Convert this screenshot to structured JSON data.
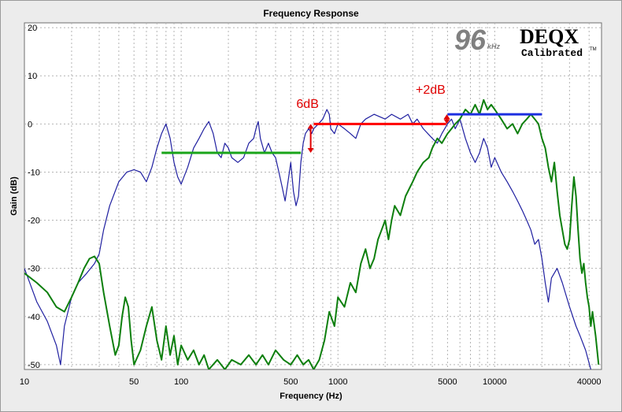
{
  "chart_data": {
    "type": "line",
    "title": "Frequency Response",
    "xlabel": "Frequency (Hz)",
    "ylabel": "Gain (dB)",
    "xscale": "log",
    "xlim": [
      10,
      48000
    ],
    "ylim": [
      -51,
      21
    ],
    "xticks": [
      10,
      50,
      100,
      500,
      1000,
      5000,
      10000,
      40000
    ],
    "yticks": [
      20,
      10,
      0,
      -10,
      -20,
      -30,
      -40,
      -50
    ],
    "grid": true,
    "legend": "none",
    "colors": {
      "midrange": "#1f1fa0",
      "tweeter": "#0d7f0d",
      "annotation_red": "#e00000",
      "level_green": "#1aa51a",
      "level_red": "#ff0000",
      "level_blue": "#1c2ee0",
      "grid": "#b4b4b4",
      "plot_bg": "#ffffff"
    },
    "series": [
      {
        "color": "#1f1fa0",
        "points": [
          [
            10,
            -30
          ],
          [
            12,
            -37
          ],
          [
            14,
            -41
          ],
          [
            16,
            -46
          ],
          [
            17,
            -50
          ],
          [
            18,
            -42
          ],
          [
            20,
            -36
          ],
          [
            22,
            -33
          ],
          [
            25,
            -31
          ],
          [
            28,
            -29
          ],
          [
            30,
            -27
          ],
          [
            32,
            -22
          ],
          [
            35,
            -17
          ],
          [
            40,
            -12
          ],
          [
            45,
            -10
          ],
          [
            50,
            -9.5
          ],
          [
            55,
            -10
          ],
          [
            60,
            -12
          ],
          [
            65,
            -9
          ],
          [
            70,
            -5
          ],
          [
            75,
            -2
          ],
          [
            80,
            0
          ],
          [
            85,
            -3
          ],
          [
            90,
            -8
          ],
          [
            95,
            -11
          ],
          [
            100,
            -12.5
          ],
          [
            110,
            -9
          ],
          [
            120,
            -5
          ],
          [
            130,
            -3
          ],
          [
            140,
            -1
          ],
          [
            150,
            0.5
          ],
          [
            160,
            -2
          ],
          [
            170,
            -6
          ],
          [
            180,
            -7
          ],
          [
            190,
            -4
          ],
          [
            200,
            -5
          ],
          [
            210,
            -7
          ],
          [
            230,
            -8
          ],
          [
            250,
            -7
          ],
          [
            270,
            -4
          ],
          [
            290,
            -3
          ],
          [
            300,
            -1
          ],
          [
            310,
            0.5
          ],
          [
            320,
            -3
          ],
          [
            340,
            -6
          ],
          [
            360,
            -4
          ],
          [
            380,
            -6
          ],
          [
            400,
            -7
          ],
          [
            420,
            -10
          ],
          [
            440,
            -13
          ],
          [
            460,
            -16
          ],
          [
            480,
            -12
          ],
          [
            500,
            -8
          ],
          [
            520,
            -14
          ],
          [
            540,
            -17
          ],
          [
            560,
            -15
          ],
          [
            580,
            -8
          ],
          [
            600,
            -4
          ],
          [
            620,
            -2
          ],
          [
            650,
            -1
          ],
          [
            680,
            -2
          ],
          [
            700,
            -1
          ],
          [
            750,
            0
          ],
          [
            800,
            1
          ],
          [
            850,
            3
          ],
          [
            880,
            2
          ],
          [
            900,
            -1
          ],
          [
            950,
            -2
          ],
          [
            1000,
            0
          ],
          [
            1100,
            -1
          ],
          [
            1200,
            -2
          ],
          [
            1300,
            -3
          ],
          [
            1400,
            0
          ],
          [
            1500,
            1
          ],
          [
            1700,
            2
          ],
          [
            2000,
            1
          ],
          [
            2200,
            2
          ],
          [
            2500,
            1
          ],
          [
            2800,
            2
          ],
          [
            3000,
            0
          ],
          [
            3200,
            1
          ],
          [
            3500,
            -1
          ],
          [
            4000,
            -3
          ],
          [
            4300,
            -4
          ],
          [
            4600,
            -2
          ],
          [
            5000,
            0
          ],
          [
            5300,
            1
          ],
          [
            5600,
            -1
          ],
          [
            6000,
            1
          ],
          [
            6500,
            -3
          ],
          [
            7000,
            -6
          ],
          [
            7500,
            -8
          ],
          [
            8000,
            -6
          ],
          [
            8500,
            -3
          ],
          [
            9000,
            -5
          ],
          [
            9500,
            -9
          ],
          [
            10000,
            -7
          ],
          [
            11000,
            -10
          ],
          [
            12000,
            -12
          ],
          [
            13000,
            -14
          ],
          [
            14000,
            -16
          ],
          [
            15000,
            -18
          ],
          [
            16000,
            -20
          ],
          [
            17000,
            -22
          ],
          [
            18000,
            -25
          ],
          [
            19000,
            -24
          ],
          [
            20000,
            -28
          ],
          [
            21000,
            -33
          ],
          [
            22000,
            -37
          ],
          [
            23000,
            -32
          ],
          [
            25000,
            -30
          ],
          [
            27000,
            -33
          ],
          [
            30000,
            -38
          ],
          [
            33000,
            -42
          ],
          [
            35000,
            -44
          ],
          [
            38000,
            -47
          ],
          [
            41000,
            -51
          ]
        ]
      },
      {
        "color": "#0d7f0d",
        "points": [
          [
            10,
            -31
          ],
          [
            12,
            -33
          ],
          [
            14,
            -35
          ],
          [
            16,
            -38
          ],
          [
            18,
            -39
          ],
          [
            20,
            -36
          ],
          [
            22,
            -33
          ],
          [
            24,
            -30
          ],
          [
            26,
            -28
          ],
          [
            28,
            -27.5
          ],
          [
            30,
            -29
          ],
          [
            32,
            -35
          ],
          [
            35,
            -42
          ],
          [
            38,
            -48
          ],
          [
            40,
            -46
          ],
          [
            42,
            -40
          ],
          [
            44,
            -36
          ],
          [
            46,
            -38
          ],
          [
            48,
            -45
          ],
          [
            50,
            -50
          ],
          [
            55,
            -47
          ],
          [
            60,
            -42
          ],
          [
            65,
            -38
          ],
          [
            70,
            -45
          ],
          [
            75,
            -49
          ],
          [
            80,
            -42
          ],
          [
            85,
            -48
          ],
          [
            90,
            -44
          ],
          [
            95,
            -50
          ],
          [
            100,
            -46
          ],
          [
            110,
            -49
          ],
          [
            120,
            -47
          ],
          [
            130,
            -50
          ],
          [
            140,
            -48
          ],
          [
            150,
            -51
          ],
          [
            170,
            -49
          ],
          [
            190,
            -51
          ],
          [
            210,
            -49
          ],
          [
            240,
            -50
          ],
          [
            270,
            -48
          ],
          [
            300,
            -50
          ],
          [
            330,
            -48
          ],
          [
            360,
            -50
          ],
          [
            400,
            -47
          ],
          [
            450,
            -49
          ],
          [
            500,
            -50
          ],
          [
            550,
            -48
          ],
          [
            600,
            -50
          ],
          [
            650,
            -49
          ],
          [
            700,
            -51
          ],
          [
            760,
            -49
          ],
          [
            820,
            -45
          ],
          [
            880,
            -39
          ],
          [
            950,
            -42
          ],
          [
            1000,
            -36
          ],
          [
            1100,
            -38
          ],
          [
            1200,
            -33
          ],
          [
            1300,
            -35
          ],
          [
            1400,
            -29
          ],
          [
            1500,
            -26
          ],
          [
            1600,
            -30
          ],
          [
            1700,
            -28
          ],
          [
            1800,
            -24
          ],
          [
            1900,
            -22
          ],
          [
            2000,
            -20
          ],
          [
            2100,
            -24
          ],
          [
            2200,
            -20
          ],
          [
            2300,
            -17
          ],
          [
            2500,
            -19
          ],
          [
            2700,
            -15
          ],
          [
            3000,
            -12
          ],
          [
            3200,
            -10
          ],
          [
            3500,
            -8
          ],
          [
            3800,
            -7
          ],
          [
            4000,
            -5
          ],
          [
            4300,
            -3
          ],
          [
            4600,
            -4
          ],
          [
            5000,
            -2
          ],
          [
            5300,
            -1
          ],
          [
            5600,
            0
          ],
          [
            6000,
            1
          ],
          [
            6500,
            3
          ],
          [
            7000,
            2
          ],
          [
            7500,
            4
          ],
          [
            8000,
            2
          ],
          [
            8500,
            5
          ],
          [
            9000,
            3
          ],
          [
            9500,
            4
          ],
          [
            10000,
            3
          ],
          [
            11000,
            1
          ],
          [
            12000,
            -1
          ],
          [
            13000,
            0
          ],
          [
            14000,
            -2
          ],
          [
            15000,
            0
          ],
          [
            16000,
            1
          ],
          [
            17000,
            2
          ],
          [
            18000,
            1
          ],
          [
            19000,
            0
          ],
          [
            20000,
            -3
          ],
          [
            21000,
            -5
          ],
          [
            22000,
            -9
          ],
          [
            23000,
            -12
          ],
          [
            24000,
            -8
          ],
          [
            25000,
            -14
          ],
          [
            26000,
            -19
          ],
          [
            27000,
            -22
          ],
          [
            28000,
            -25
          ],
          [
            29000,
            -26
          ],
          [
            30000,
            -24
          ],
          [
            31000,
            -17
          ],
          [
            32000,
            -11
          ],
          [
            33000,
            -15
          ],
          [
            34000,
            -22
          ],
          [
            35000,
            -28
          ],
          [
            36000,
            -31
          ],
          [
            37000,
            -29
          ],
          [
            38000,
            -33
          ],
          [
            39000,
            -36
          ],
          [
            40000,
            -38
          ],
          [
            41000,
            -42
          ],
          [
            42000,
            -39
          ],
          [
            44000,
            -44
          ],
          [
            46000,
            -50
          ]
        ]
      }
    ],
    "level_lines": [
      {
        "x": [
          75,
          580
        ],
        "y": -6,
        "color": "#1aa51a"
      },
      {
        "x": [
          700,
          4900
        ],
        "y": 0,
        "color": "#ff0000"
      },
      {
        "x": [
          5000,
          20000
        ],
        "y": 2,
        "color": "#1c2ee0"
      }
    ],
    "annotations": [
      {
        "text": "6dB",
        "x": 640,
        "y": 3.3,
        "arrow_x": 670,
        "arrow_y": [
          0,
          -6
        ]
      },
      {
        "text": "+2dB",
        "x": 3900,
        "y": 6.3,
        "arrow_x": 4950,
        "arrow_y": [
          2,
          0
        ]
      }
    ]
  },
  "logo": {
    "rate": "96",
    "unit": "kHz",
    "brand": "DEQX",
    "badge": "Calibrated",
    "tm": "TM"
  }
}
